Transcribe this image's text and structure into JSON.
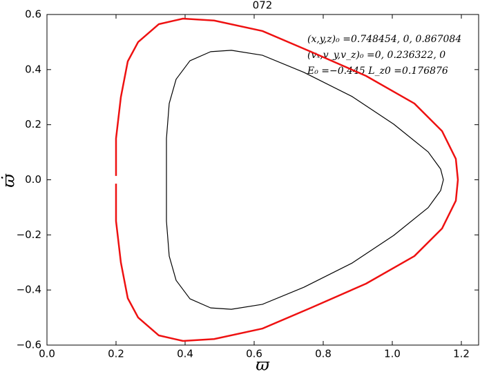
{
  "chart_data": {
    "type": "line",
    "title": "072",
    "xlabel": "ϖ",
    "ylabel": "ϖ̇",
    "annotations": [
      "(x,y,z)₀ =0.748454, 0, 0.867084",
      "(vₓ,v_y,v_z)₀ =0, 0.236322, 0",
      "E₀ =−0.445  L_z0 =0.176876"
    ],
    "xlim": [
      0,
      1.25
    ],
    "ylim": [
      -0.6,
      0.6
    ],
    "xticks": [
      {
        "value": 0,
        "label": "0.0"
      },
      {
        "value": 0.2,
        "label": "0.2"
      },
      {
        "value": 0.4,
        "label": "0.4"
      },
      {
        "value": 0.6,
        "label": "0.6"
      },
      {
        "value": 0.8,
        "label": "0.8"
      },
      {
        "value": 1.0,
        "label": "1.0"
      },
      {
        "value": 1.2,
        "label": "1.2"
      }
    ],
    "yticks": [
      {
        "value": -0.6,
        "label": "−0.6"
      },
      {
        "value": -0.4,
        "label": "−0.4"
      },
      {
        "value": -0.2,
        "label": "−0.2"
      },
      {
        "value": 0,
        "label": "0.0"
      },
      {
        "value": 0.2,
        "label": "0.2"
      },
      {
        "value": 0.4,
        "label": "0.4"
      },
      {
        "value": 0.6,
        "label": "0.6"
      }
    ],
    "series": [
      {
        "color": "#ee1111",
        "width": 2.5,
        "x": [
          0.2,
          0.2,
          0.214,
          0.234,
          0.264,
          0.324,
          0.394,
          0.484,
          0.624,
          0.764,
          0.924,
          1.064,
          1.144,
          1.184,
          1.19,
          1.184,
          1.144,
          1.064,
          0.924,
          0.764,
          0.624,
          0.484,
          0.394,
          0.324,
          0.264,
          0.234,
          0.214,
          0.2,
          0.2
        ],
        "values": [
          0.014,
          0.15,
          0.3,
          0.43,
          0.5,
          0.565,
          0.585,
          0.578,
          0.54,
          0.465,
          0.377,
          0.277,
          0.177,
          0.076,
          0,
          -0.076,
          -0.177,
          -0.277,
          -0.377,
          -0.465,
          -0.54,
          -0.578,
          -0.585,
          -0.565,
          -0.5,
          -0.43,
          -0.3,
          -0.15,
          -0.014
        ]
      },
      {
        "color": "#000000",
        "width": 1.2,
        "x": [
          0.346,
          0.346,
          0.354,
          0.374,
          0.414,
          0.474,
          0.534,
          0.624,
          0.744,
          0.884,
          1.004,
          1.104,
          1.14,
          1.148,
          1.14,
          1.104,
          1.004,
          0.884,
          0.744,
          0.624,
          0.534,
          0.474,
          0.414,
          0.374,
          0.354,
          0.346,
          0.346
        ],
        "values": [
          0,
          0.15,
          0.277,
          0.365,
          0.432,
          0.465,
          0.47,
          0.452,
          0.39,
          0.302,
          0.202,
          0.101,
          0.039,
          0,
          -0.039,
          -0.101,
          -0.202,
          -0.302,
          -0.39,
          -0.452,
          -0.47,
          -0.465,
          -0.432,
          -0.365,
          -0.277,
          -0.15,
          0
        ]
      }
    ]
  }
}
